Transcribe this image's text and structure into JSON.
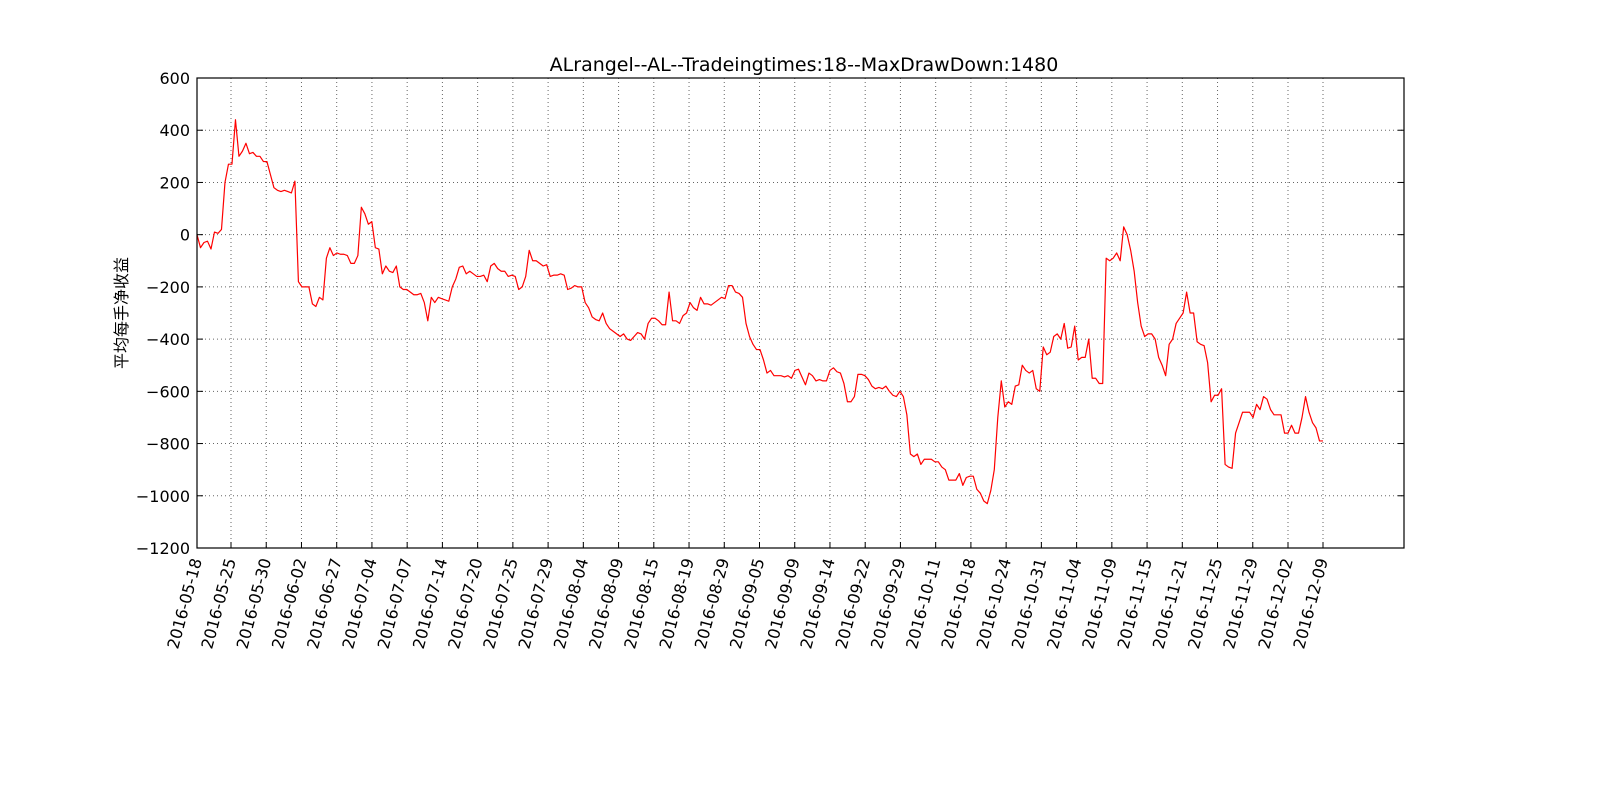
{
  "chart_data": {
    "type": "line",
    "title": "ALrangel--AL--Tradeingtimes:18--MaxDrawDown:1480",
    "xlabel": "",
    "ylabel": "平均每手净收益",
    "ylim": [
      -1200,
      600
    ],
    "yticks": [
      600,
      400,
      200,
      0,
      -200,
      -400,
      -600,
      -800,
      -1000,
      -1200
    ],
    "ytick_labels": [
      "600",
      "400",
      "200",
      "0",
      "−200",
      "−400",
      "−600",
      "−800",
      "−1000",
      "−1200"
    ],
    "xticks": [
      "2016-05-18",
      "2016-05-25",
      "2016-05-30",
      "2016-06-02",
      "2016-06-27",
      "2016-07-04",
      "2016-07-07",
      "2016-07-14",
      "2016-07-20",
      "2016-07-25",
      "2016-07-29",
      "2016-08-04",
      "2016-08-09",
      "2016-08-15",
      "2016-08-19",
      "2016-08-29",
      "2016-09-05",
      "2016-09-09",
      "2016-09-14",
      "2016-09-22",
      "2016-09-29",
      "2016-10-11",
      "2016-10-18",
      "2016-10-24",
      "2016-10-31",
      "2016-11-04",
      "2016-11-09",
      "2016-11-15",
      "2016-11-21",
      "2016-11-25",
      "2016-11-29",
      "2016-12-02",
      "2016-12-09"
    ],
    "grid": true,
    "color": "#ff0000",
    "series": [
      {
        "name": "",
        "values": [
          0,
          -50,
          -30,
          -25,
          -55,
          10,
          5,
          20,
          200,
          270,
          270,
          440,
          300,
          320,
          350,
          310,
          315,
          300,
          300,
          280,
          280,
          230,
          180,
          170,
          165,
          170,
          165,
          160,
          205,
          -180,
          -200,
          -200,
          -200,
          -265,
          -275,
          -240,
          -250,
          -90,
          -50,
          -80,
          -70,
          -75,
          -75,
          -80,
          -110,
          -110,
          -80,
          105,
          80,
          40,
          50,
          -50,
          -55,
          -150,
          -120,
          -140,
          -145,
          -120,
          -200,
          -210,
          -210,
          -220,
          -230,
          -230,
          -225,
          -260,
          -330,
          -240,
          -260,
          -240,
          -245,
          -250,
          -255,
          -200,
          -170,
          -125,
          -120,
          -150,
          -140,
          -150,
          -160,
          -160,
          -155,
          -180,
          -120,
          -110,
          -130,
          -140,
          -140,
          -160,
          -155,
          -160,
          -210,
          -200,
          -160,
          -60,
          -100,
          -100,
          -110,
          -120,
          -115,
          -160,
          -155,
          -155,
          -150,
          -155,
          -210,
          -205,
          -195,
          -200,
          -200,
          -260,
          -280,
          -315,
          -325,
          -330,
          -300,
          -340,
          -360,
          -370,
          -380,
          -390,
          -380,
          -400,
          -405,
          -390,
          -375,
          -380,
          -400,
          -340,
          -320,
          -320,
          -330,
          -345,
          -345,
          -220,
          -330,
          -330,
          -340,
          -310,
          -300,
          -260,
          -280,
          -290,
          -240,
          -265,
          -265,
          -270,
          -260,
          -250,
          -240,
          -245,
          -195,
          -195,
          -220,
          -225,
          -240,
          -340,
          -390,
          -420,
          -440,
          -440,
          -480,
          -530,
          -520,
          -540,
          -540,
          -540,
          -545,
          -540,
          -550,
          -520,
          -515,
          -545,
          -575,
          -530,
          -540,
          -560,
          -555,
          -560,
          -560,
          -520,
          -510,
          -525,
          -530,
          -570,
          -640,
          -640,
          -620,
          -535,
          -535,
          -540,
          -555,
          -580,
          -590,
          -585,
          -590,
          -580,
          -600,
          -615,
          -620,
          -600,
          -620,
          -690,
          -840,
          -850,
          -840,
          -880,
          -860,
          -860,
          -860,
          -870,
          -870,
          -890,
          -900,
          -940,
          -940,
          -940,
          -915,
          -960,
          -930,
          -925,
          -925,
          -975,
          -990,
          -1020,
          -1030,
          -980,
          -900,
          -700,
          -560,
          -660,
          -640,
          -650,
          -580,
          -575,
          -500,
          -520,
          -530,
          -520,
          -590,
          -600,
          -430,
          -460,
          -450,
          -390,
          -380,
          -400,
          -340,
          -435,
          -430,
          -350,
          -480,
          -470,
          -470,
          -400,
          -550,
          -550,
          -570,
          -570,
          -90,
          -100,
          -90,
          -70,
          -100,
          30,
          0,
          -60,
          -140,
          -260,
          -350,
          -390,
          -380,
          -380,
          -400,
          -470,
          -500,
          -540,
          -420,
          -400,
          -340,
          -320,
          -300,
          -220,
          -300,
          -300,
          -410,
          -420,
          -425,
          -490,
          -640,
          -615,
          -615,
          -590,
          -880,
          -890,
          -895,
          -760,
          -720,
          -680,
          -680,
          -680,
          -700,
          -650,
          -670,
          -620,
          -630,
          -670,
          -690,
          -690,
          -690,
          -760,
          -760,
          -730,
          -760,
          -760,
          -700,
          -620,
          -680,
          -720,
          -740,
          -790,
          -790
        ]
      }
    ]
  }
}
